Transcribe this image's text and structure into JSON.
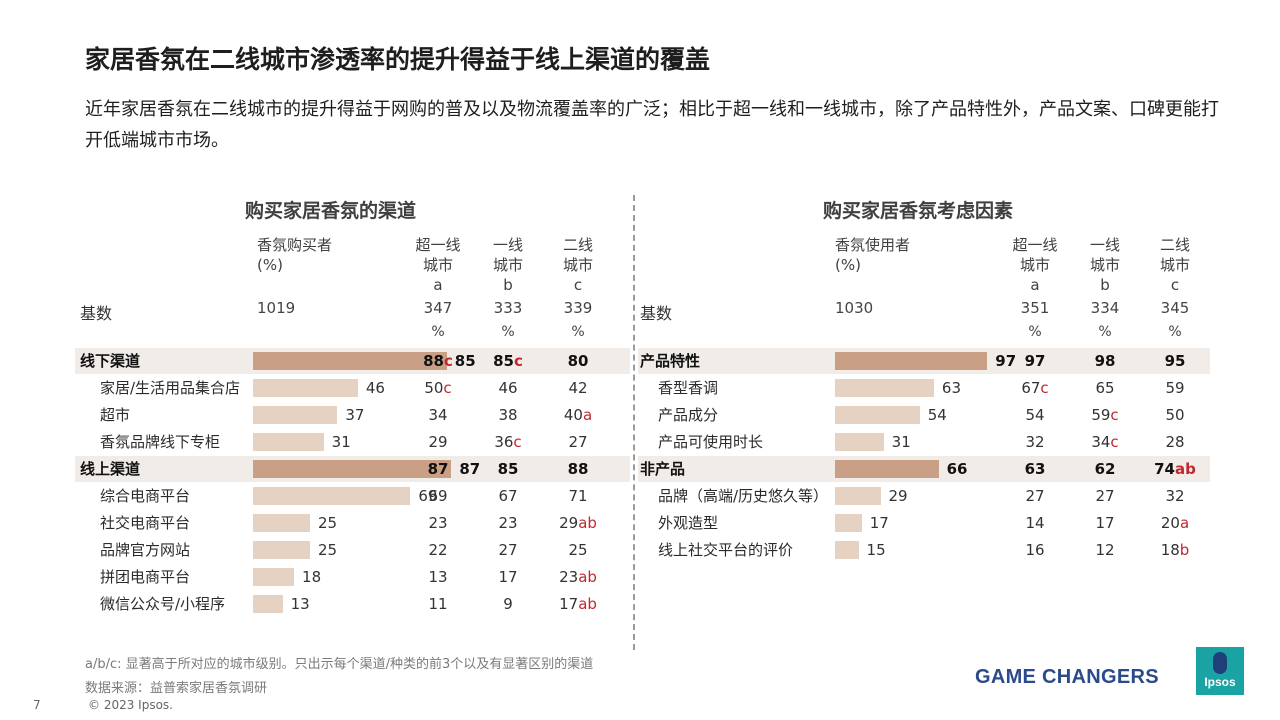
{
  "title": "家居香氛在二线城市渗透率的提升得益于线上渠道的覆盖",
  "subtitle": "近年家居香氛在二线城市的提升得益于网购的普及以及物流覆盖率的广泛；相比于超一线和一线城市，除了产品特性外，产品文案、口碑更能打开低端城市市场。",
  "colors": {
    "bar_group": "#c9a085",
    "bar_item": "#e6d2c2",
    "row_highlight": "#f2ece8",
    "significance": "#c0282e",
    "brand_blue": "#2a4a8c",
    "logo_teal": "#1aa3a3"
  },
  "chart_data": [
    {
      "type": "bar",
      "title": "购买家居香氛的渠道",
      "main_header": "香氛购买者\n(%)",
      "columns": [
        {
          "label": "超一线\n城市\na",
          "base": "347"
        },
        {
          "label": "一线\n城市\nb",
          "base": "333"
        },
        {
          "label": "二线\n城市\nc",
          "base": "339"
        }
      ],
      "base_label": "基数",
      "base_total": "1019",
      "pct_symbol": "%",
      "rows": [
        {
          "label": "线下渠道",
          "group": true,
          "value": 85,
          "cells": [
            {
              "v": "88",
              "s": "c"
            },
            {
              "v": "85",
              "s": "c"
            },
            {
              "v": "80",
              "s": ""
            }
          ]
        },
        {
          "label": "家居/生活用品集合店",
          "group": false,
          "value": 46,
          "cells": [
            {
              "v": "50",
              "s": "c"
            },
            {
              "v": "46",
              "s": ""
            },
            {
              "v": "42",
              "s": ""
            }
          ]
        },
        {
          "label": "超市",
          "group": false,
          "value": 37,
          "cells": [
            {
              "v": "34",
              "s": ""
            },
            {
              "v": "38",
              "s": ""
            },
            {
              "v": "40",
              "s": "a"
            }
          ]
        },
        {
          "label": "香氛品牌线下专柜",
          "group": false,
          "value": 31,
          "cells": [
            {
              "v": "29",
              "s": ""
            },
            {
              "v": "36",
              "s": "c"
            },
            {
              "v": "27",
              "s": ""
            }
          ]
        },
        {
          "label": "线上渠道",
          "group": true,
          "value": 87,
          "cells": [
            {
              "v": "87",
              "s": ""
            },
            {
              "v": "85",
              "s": ""
            },
            {
              "v": "88",
              "s": ""
            }
          ]
        },
        {
          "label": "综合电商平台",
          "group": false,
          "value": 69,
          "cells": [
            {
              "v": "69",
              "s": ""
            },
            {
              "v": "67",
              "s": ""
            },
            {
              "v": "71",
              "s": ""
            }
          ]
        },
        {
          "label": "社交电商平台",
          "group": false,
          "value": 25,
          "cells": [
            {
              "v": "23",
              "s": ""
            },
            {
              "v": "23",
              "s": ""
            },
            {
              "v": "29",
              "s": "ab"
            }
          ]
        },
        {
          "label": "品牌官方网站",
          "group": false,
          "value": 25,
          "cells": [
            {
              "v": "22",
              "s": ""
            },
            {
              "v": "27",
              "s": ""
            },
            {
              "v": "25",
              "s": ""
            }
          ]
        },
        {
          "label": "拼团电商平台",
          "group": false,
          "value": 18,
          "cells": [
            {
              "v": "13",
              "s": ""
            },
            {
              "v": "17",
              "s": ""
            },
            {
              "v": "23",
              "s": "ab"
            }
          ]
        },
        {
          "label": "微信公众号/小程序",
          "group": false,
          "value": 13,
          "cells": [
            {
              "v": "11",
              "s": ""
            },
            {
              "v": "9",
              "s": ""
            },
            {
              "v": "17",
              "s": "ab"
            }
          ]
        }
      ]
    },
    {
      "type": "bar",
      "title": "购买家居香氛考虑因素",
      "main_header": "香氛使用者\n(%)",
      "columns": [
        {
          "label": "超一线\n城市\na",
          "base": "351"
        },
        {
          "label": "一线\n城市\nb",
          "base": "334"
        },
        {
          "label": "二线\n城市\nc",
          "base": "345"
        }
      ],
      "base_label": "基数",
      "base_total": "1030",
      "pct_symbol": "%",
      "rows": [
        {
          "label": "产品特性",
          "group": true,
          "value": 97,
          "cells": [
            {
              "v": "97",
              "s": ""
            },
            {
              "v": "98",
              "s": ""
            },
            {
              "v": "95",
              "s": ""
            }
          ]
        },
        {
          "label": "香型香调",
          "group": false,
          "value": 63,
          "cells": [
            {
              "v": "67",
              "s": "c"
            },
            {
              "v": "65",
              "s": ""
            },
            {
              "v": "59",
              "s": ""
            }
          ]
        },
        {
          "label": "产品成分",
          "group": false,
          "value": 54,
          "cells": [
            {
              "v": "54",
              "s": ""
            },
            {
              "v": "59",
              "s": "c"
            },
            {
              "v": "50",
              "s": ""
            }
          ]
        },
        {
          "label": "产品可使用时长",
          "group": false,
          "value": 31,
          "cells": [
            {
              "v": "32",
              "s": ""
            },
            {
              "v": "34",
              "s": "c"
            },
            {
              "v": "28",
              "s": ""
            }
          ]
        },
        {
          "label": "非产品",
          "group": true,
          "value": 66,
          "cells": [
            {
              "v": "63",
              "s": ""
            },
            {
              "v": "62",
              "s": ""
            },
            {
              "v": "74",
              "s": "ab"
            }
          ]
        },
        {
          "label": "品牌（高端/历史悠久等）",
          "group": false,
          "value": 29,
          "cells": [
            {
              "v": "27",
              "s": ""
            },
            {
              "v": "27",
              "s": ""
            },
            {
              "v": "32",
              "s": ""
            }
          ]
        },
        {
          "label": "外观造型",
          "group": false,
          "value": 17,
          "cells": [
            {
              "v": "14",
              "s": ""
            },
            {
              "v": "17",
              "s": ""
            },
            {
              "v": "20",
              "s": "a"
            }
          ]
        },
        {
          "label": "线上社交平台的评价",
          "group": false,
          "value": 15,
          "cells": [
            {
              "v": "16",
              "s": ""
            },
            {
              "v": "12",
              "s": ""
            },
            {
              "v": "18",
              "s": "b"
            }
          ]
        }
      ]
    }
  ],
  "footnote": "a/b/c: 显著高于所对应的城市级别。只出示每个渠道/种类的前3个以及有显著区别的渠道",
  "source": "数据来源：益普索家居香氛调研",
  "page_number": "7",
  "copyright": "© 2023 Ipsos.",
  "brand_tagline": "GAME CHANGERS",
  "logo_text": "Ipsos"
}
